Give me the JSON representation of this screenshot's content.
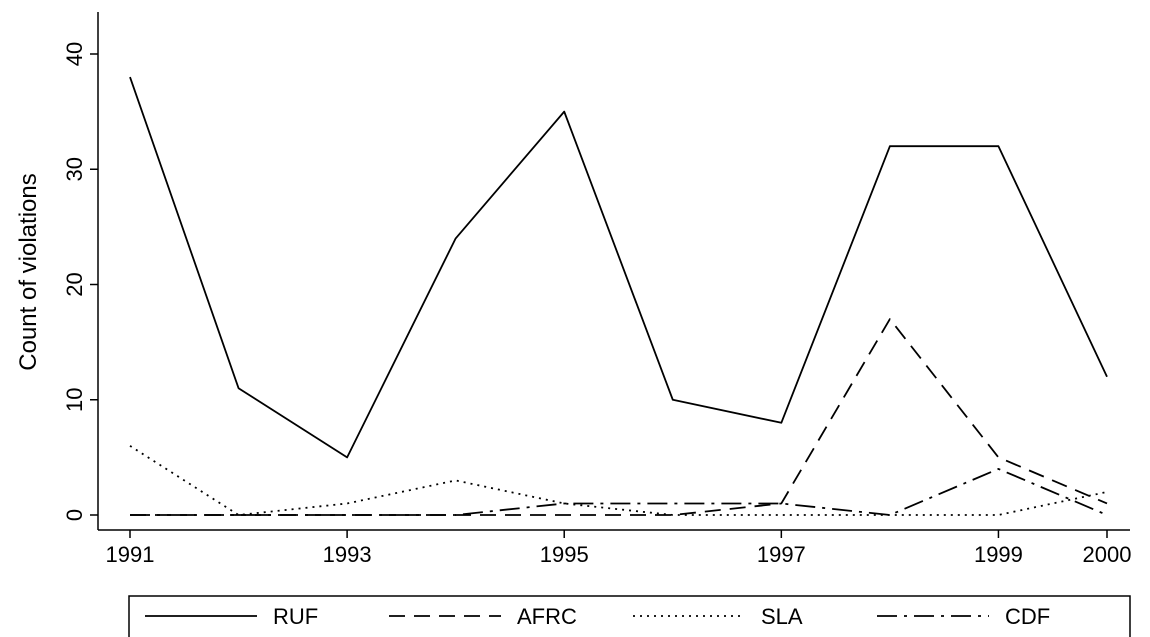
{
  "chart_data": {
    "type": "line",
    "title": "",
    "xlabel": "",
    "ylabel": "Count of violations",
    "x": [
      1991,
      1992,
      1993,
      1994,
      1995,
      1996,
      1997,
      1998,
      1999,
      2000
    ],
    "x_ticks": [
      "1991",
      "1993",
      "1995",
      "1997",
      "1999",
      "2000"
    ],
    "y_ticks": [
      "0",
      "10",
      "20",
      "30",
      "40"
    ],
    "xlim": [
      1991,
      2000
    ],
    "ylim": [
      0,
      40
    ],
    "grid": false,
    "legend_position": "bottom",
    "series": [
      {
        "name": "RUF",
        "style": "solid",
        "color": "#000000",
        "values": [
          38,
          11,
          5,
          24,
          35,
          10,
          8,
          32,
          32,
          12
        ]
      },
      {
        "name": "AFRC",
        "style": "dashed",
        "color": "#000000",
        "values": [
          0,
          0,
          0,
          0,
          0,
          0,
          1,
          17,
          5,
          1
        ]
      },
      {
        "name": "SLA",
        "style": "dotted",
        "color": "#000000",
        "values": [
          6,
          0,
          1,
          3,
          1,
          0,
          0,
          0,
          0,
          2
        ]
      },
      {
        "name": "CDF",
        "style": "dash-dot",
        "color": "#000000",
        "values": [
          0,
          0,
          0,
          0,
          1,
          1,
          1,
          0,
          4,
          0
        ]
      }
    ]
  }
}
